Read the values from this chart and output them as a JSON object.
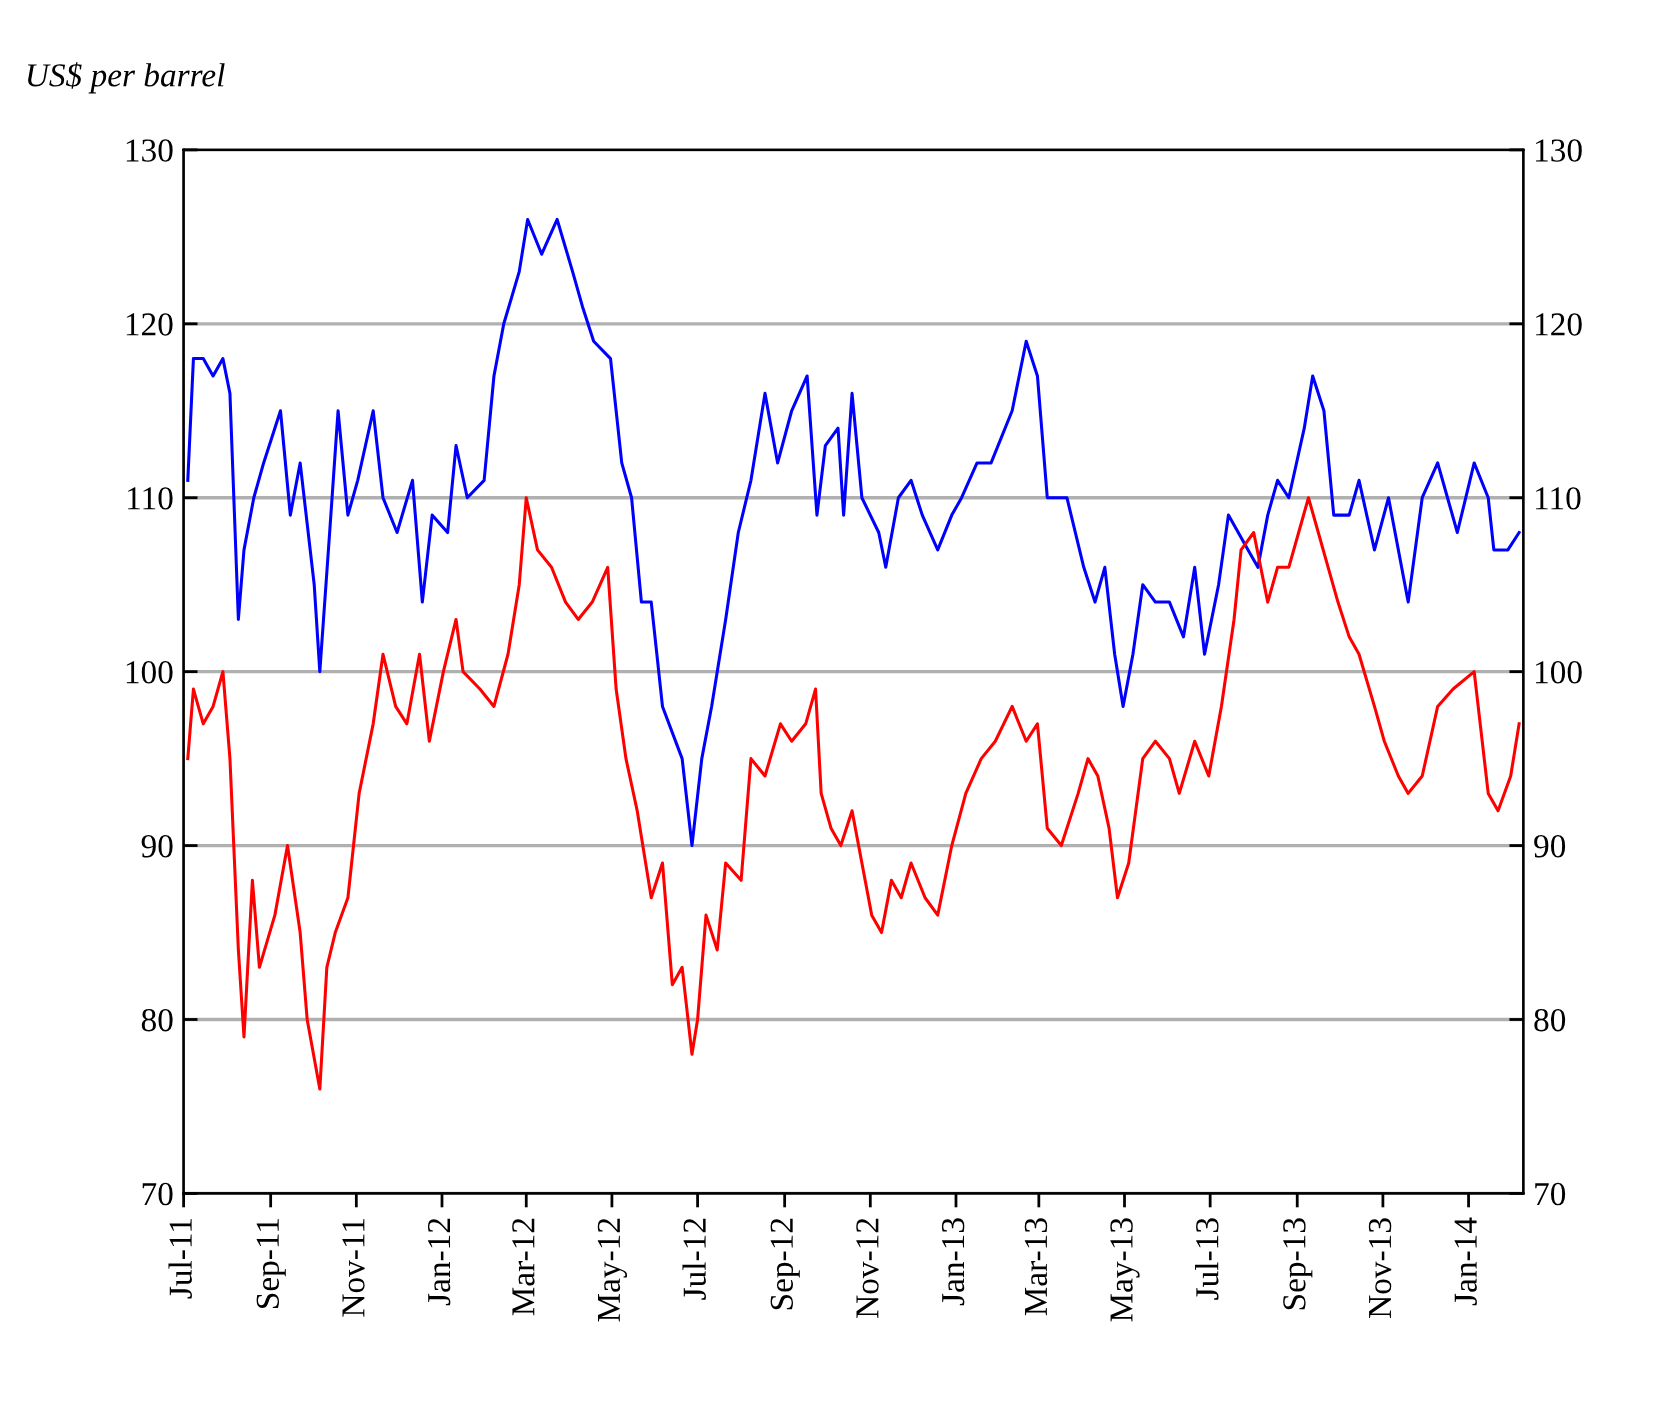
{
  "chart_data": {
    "type": "line",
    "ylabel": "US$ per barrel",
    "xlim": [
      "2011-07-01",
      "2014-02-09"
    ],
    "xticks": [
      {
        "value": "2011-07-01",
        "label": "Jul-11"
      },
      {
        "value": "2011-09-01",
        "label": "Sep-11"
      },
      {
        "value": "2011-11-01",
        "label": "Nov-11"
      },
      {
        "value": "2012-01-01",
        "label": "Jan-12"
      },
      {
        "value": "2012-03-01",
        "label": "Mar-12"
      },
      {
        "value": "2012-05-01",
        "label": "May-12"
      },
      {
        "value": "2012-07-01",
        "label": "Jul-12"
      },
      {
        "value": "2012-09-01",
        "label": "Sep-12"
      },
      {
        "value": "2012-11-01",
        "label": "Nov-12"
      },
      {
        "value": "2013-01-01",
        "label": "Jan-13"
      },
      {
        "value": "2013-03-01",
        "label": "Mar-13"
      },
      {
        "value": "2013-05-01",
        "label": "May-13"
      },
      {
        "value": "2013-07-01",
        "label": "Jul-13"
      },
      {
        "value": "2013-09-01",
        "label": "Sep-13"
      },
      {
        "value": "2013-11-01",
        "label": "Nov-13"
      },
      {
        "value": "2014-01-01",
        "label": "Jan-14"
      }
    ],
    "ylim": [
      70,
      130
    ],
    "yticks": [
      70,
      80,
      90,
      100,
      110,
      120,
      130
    ],
    "y2lim": [
      70,
      130
    ],
    "y2ticks": [
      70,
      80,
      90,
      100,
      110,
      120,
      130
    ],
    "grid": "y",
    "marker": "none",
    "line_style": "solid",
    "series": [
      {
        "color": "#0000ff",
        "x": [
          "2011-07-04",
          "2011-07-08",
          "2011-07-15",
          "2011-07-22",
          "2011-07-29",
          "2011-08-03",
          "2011-08-09",
          "2011-08-13",
          "2011-08-20",
          "2011-08-27",
          "2011-09-08",
          "2011-09-15",
          "2011-09-22",
          "2011-10-02",
          "2011-10-06",
          "2011-10-13",
          "2011-10-19",
          "2011-10-26",
          "2011-11-02",
          "2011-11-13",
          "2011-11-20",
          "2011-11-30",
          "2011-12-11",
          "2011-12-18",
          "2011-12-25",
          "2012-01-05",
          "2012-01-11",
          "2012-01-19",
          "2012-01-31",
          "2012-02-07",
          "2012-02-14",
          "2012-02-25",
          "2012-03-02",
          "2012-03-12",
          "2012-03-23",
          "2012-04-03",
          "2012-04-10",
          "2012-04-18",
          "2012-04-30",
          "2012-05-08",
          "2012-05-15",
          "2012-05-22",
          "2012-05-29",
          "2012-06-06",
          "2012-06-20",
          "2012-06-27",
          "2012-07-04",
          "2012-07-11",
          "2012-07-21",
          "2012-07-30",
          "2012-08-08",
          "2012-08-18",
          "2012-08-27",
          "2012-09-06",
          "2012-09-17",
          "2012-09-24",
          "2012-09-30",
          "2012-10-09",
          "2012-10-13",
          "2012-10-19",
          "2012-10-26",
          "2012-11-07",
          "2012-11-12",
          "2012-11-21",
          "2012-11-30",
          "2012-12-08",
          "2012-12-19",
          "2012-12-29",
          "2013-01-05",
          "2013-01-16",
          "2013-01-26",
          "2013-02-10",
          "2013-02-20",
          "2013-02-28",
          "2013-03-07",
          "2013-03-21",
          "2013-04-02",
          "2013-04-10",
          "2013-04-17",
          "2013-04-24",
          "2013-04-30",
          "2013-05-07",
          "2013-05-14",
          "2013-05-23",
          "2013-06-02",
          "2013-06-12",
          "2013-06-20",
          "2013-06-27",
          "2013-07-07",
          "2013-07-14",
          "2013-07-21",
          "2013-07-28",
          "2013-08-04",
          "2013-08-11",
          "2013-08-18",
          "2013-08-26",
          "2013-09-06",
          "2013-09-12",
          "2013-09-20",
          "2013-09-27",
          "2013-10-08",
          "2013-10-15",
          "2013-10-26",
          "2013-11-05",
          "2013-11-19",
          "2013-11-29",
          "2013-12-10",
          "2013-12-17",
          "2013-12-24",
          "2014-01-05",
          "2014-01-15",
          "2014-01-19",
          "2014-01-29",
          "2014-02-06"
        ],
        "values": [
          111,
          118,
          118,
          117,
          118,
          116,
          103,
          107,
          110,
          112,
          115,
          109,
          112,
          105,
          100,
          108,
          115,
          109,
          111,
          115,
          110,
          108,
          111,
          104,
          109,
          108,
          113,
          110,
          111,
          117,
          120,
          123,
          126,
          124,
          126,
          123,
          121,
          119,
          118,
          112,
          110,
          104,
          104,
          98,
          95,
          90,
          95,
          98,
          103,
          108,
          111,
          116,
          112,
          115,
          117,
          109,
          113,
          114,
          109,
          116,
          110,
          108,
          106,
          110,
          111,
          109,
          107,
          109,
          110,
          112,
          112,
          115,
          119,
          117,
          110,
          110,
          106,
          104,
          106,
          101,
          98,
          101,
          105,
          104,
          104,
          102,
          106,
          101,
          105,
          109,
          108,
          107,
          106,
          109,
          111,
          110,
          114,
          117,
          115,
          109,
          109,
          111,
          107,
          110,
          104,
          110,
          112,
          110,
          108,
          112,
          110,
          107,
          107,
          108
        ]
      },
      {
        "color": "#ff0000",
        "x": [
          "2011-07-04",
          "2011-07-08",
          "2011-07-15",
          "2011-07-22",
          "2011-07-29",
          "2011-08-03",
          "2011-08-09",
          "2011-08-13",
          "2011-08-19",
          "2011-08-24",
          "2011-09-04",
          "2011-09-13",
          "2011-09-22",
          "2011-09-27",
          "2011-10-06",
          "2011-10-11",
          "2011-10-17",
          "2011-10-26",
          "2011-11-03",
          "2011-11-13",
          "2011-11-20",
          "2011-11-29",
          "2011-12-07",
          "2011-12-16",
          "2011-12-23",
          "2012-01-02",
          "2012-01-11",
          "2012-01-16",
          "2012-01-28",
          "2012-02-07",
          "2012-02-17",
          "2012-02-25",
          "2012-03-01",
          "2012-03-09",
          "2012-03-19",
          "2012-03-29",
          "2012-04-07",
          "2012-04-17",
          "2012-04-28",
          "2012-05-04",
          "2012-05-11",
          "2012-05-19",
          "2012-05-29",
          "2012-06-06",
          "2012-06-13",
          "2012-06-20",
          "2012-06-27",
          "2012-07-01",
          "2012-07-07",
          "2012-07-15",
          "2012-07-21",
          "2012-08-01",
          "2012-08-08",
          "2012-08-18",
          "2012-08-29",
          "2012-09-06",
          "2012-09-16",
          "2012-09-23",
          "2012-09-27",
          "2012-10-04",
          "2012-10-11",
          "2012-10-19",
          "2012-10-26",
          "2012-11-02",
          "2012-11-09",
          "2012-11-16",
          "2012-11-23",
          "2012-11-30",
          "2012-12-10",
          "2012-12-19",
          "2012-12-29",
          "2013-01-08",
          "2013-01-19",
          "2013-01-29",
          "2013-02-10",
          "2013-02-20",
          "2013-02-28",
          "2013-03-07",
          "2013-03-17",
          "2013-03-29",
          "2013-04-05",
          "2013-04-12",
          "2013-04-20",
          "2013-04-26",
          "2013-05-04",
          "2013-05-14",
          "2013-05-23",
          "2013-06-02",
          "2013-06-09",
          "2013-06-20",
          "2013-06-30",
          "2013-07-09",
          "2013-07-18",
          "2013-07-23",
          "2013-08-01",
          "2013-08-11",
          "2013-08-18",
          "2013-08-26",
          "2013-09-02",
          "2013-09-09",
          "2013-09-16",
          "2013-09-23",
          "2013-09-30",
          "2013-10-08",
          "2013-10-15",
          "2013-10-26",
          "2013-11-02",
          "2013-11-12",
          "2013-11-19",
          "2013-11-29",
          "2013-12-10",
          "2013-12-21",
          "2014-01-05",
          "2014-01-15",
          "2014-01-22",
          "2014-01-31",
          "2014-02-06"
        ],
        "values": [
          95,
          99,
          97,
          98,
          100,
          95,
          84,
          79,
          88,
          83,
          86,
          90,
          85,
          80,
          76,
          83,
          85,
          87,
          93,
          97,
          101,
          98,
          97,
          101,
          96,
          100,
          103,
          100,
          99,
          98,
          101,
          105,
          110,
          107,
          106,
          104,
          103,
          104,
          106,
          99,
          95,
          92,
          87,
          89,
          82,
          83,
          78,
          80,
          86,
          84,
          89,
          88,
          95,
          94,
          97,
          96,
          97,
          99,
          93,
          91,
          90,
          92,
          89,
          86,
          85,
          88,
          87,
          89,
          87,
          86,
          90,
          93,
          95,
          96,
          98,
          96,
          97,
          91,
          90,
          93,
          95,
          94,
          91,
          87,
          89,
          95,
          96,
          95,
          93,
          96,
          94,
          98,
          103,
          107,
          108,
          104,
          106,
          106,
          108,
          110,
          108,
          106,
          104,
          102,
          101,
          98,
          96,
          94,
          93,
          94,
          98,
          99,
          100,
          93,
          92,
          94,
          97
        ]
      }
    ]
  }
}
